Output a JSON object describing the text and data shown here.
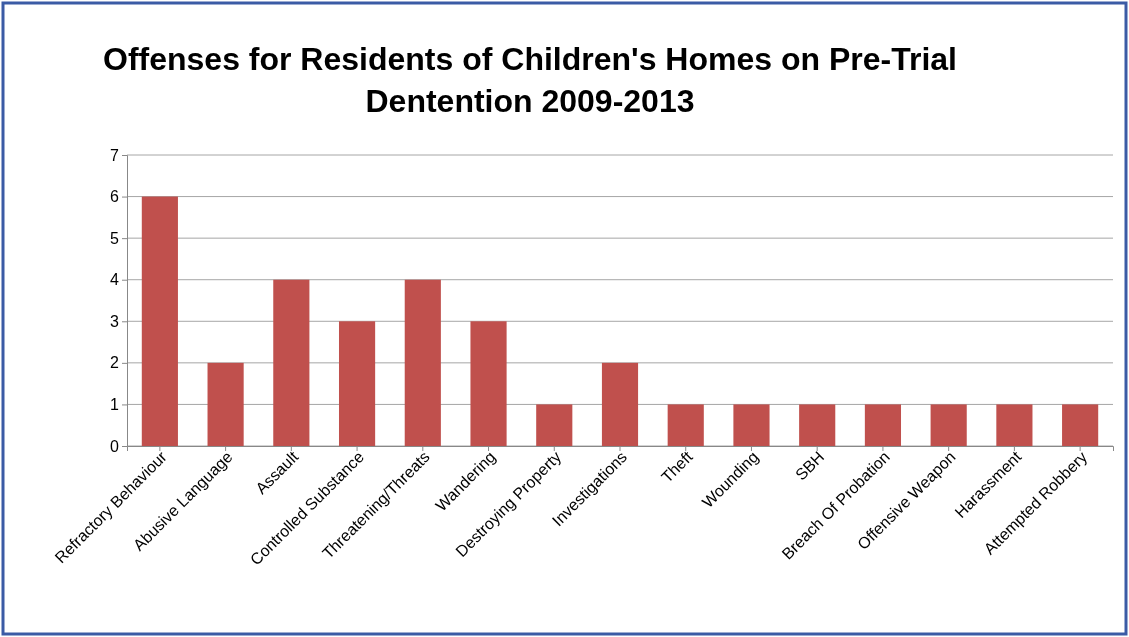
{
  "chart_data": {
    "type": "bar",
    "title": "Offenses for Residents of Children's Homes on Pre-Trial Dentention 2009-2013",
    "categories": [
      "Refractory Behaviour",
      "Abusive Language",
      "Assault",
      "Controlled Substance",
      "Threatening/Threats",
      "Wandering",
      "Destroying Property",
      "Investigations",
      "Theft",
      "Wounding",
      "SBH",
      "Breach Of Probation",
      "Offensive Weapon",
      "Harassment",
      "Attempted Robbery"
    ],
    "values": [
      6,
      2,
      4,
      3,
      4,
      3,
      1,
      2,
      1,
      1,
      1,
      1,
      1,
      1,
      1
    ],
    "color": "#c0504d",
    "ylim": [
      0,
      7
    ],
    "yticks": [
      0,
      1,
      2,
      3,
      4,
      5,
      6,
      7
    ],
    "grid": "y"
  }
}
